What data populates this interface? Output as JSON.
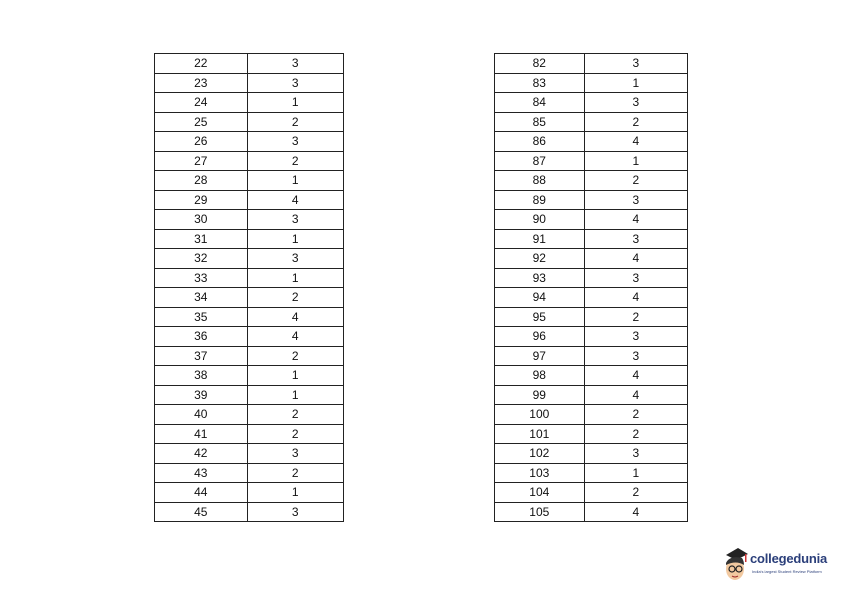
{
  "tables": [
    {
      "rows": [
        [
          "22",
          "3"
        ],
        [
          "23",
          "3"
        ],
        [
          "24",
          "1"
        ],
        [
          "25",
          "2"
        ],
        [
          "26",
          "3"
        ],
        [
          "27",
          "2"
        ],
        [
          "28",
          "1"
        ],
        [
          "29",
          "4"
        ],
        [
          "30",
          "3"
        ],
        [
          "31",
          "1"
        ],
        [
          "32",
          "3"
        ],
        [
          "33",
          "1"
        ],
        [
          "34",
          "2"
        ],
        [
          "35",
          "4"
        ],
        [
          "36",
          "4"
        ],
        [
          "37",
          "2"
        ],
        [
          "38",
          "1"
        ],
        [
          "39",
          "1"
        ],
        [
          "40",
          "2"
        ],
        [
          "41",
          "2"
        ],
        [
          "42",
          "3"
        ],
        [
          "43",
          "2"
        ],
        [
          "44",
          "1"
        ],
        [
          "45",
          "3"
        ]
      ]
    },
    {
      "rows": [
        [
          "82",
          "3"
        ],
        [
          "83",
          "1"
        ],
        [
          "84",
          "3"
        ],
        [
          "85",
          "2"
        ],
        [
          "86",
          "4"
        ],
        [
          "87",
          "1"
        ],
        [
          "88",
          "2"
        ],
        [
          "89",
          "3"
        ],
        [
          "90",
          "4"
        ],
        [
          "91",
          "3"
        ],
        [
          "92",
          "4"
        ],
        [
          "93",
          "3"
        ],
        [
          "94",
          "4"
        ],
        [
          "95",
          "2"
        ],
        [
          "96",
          "3"
        ],
        [
          "97",
          "3"
        ],
        [
          "98",
          "4"
        ],
        [
          "99",
          "4"
        ],
        [
          "100",
          "2"
        ],
        [
          "101",
          "2"
        ],
        [
          "102",
          "3"
        ],
        [
          "103",
          "1"
        ],
        [
          "104",
          "2"
        ],
        [
          "105",
          "4"
        ]
      ]
    }
  ],
  "logo": {
    "name": "collegedunia",
    "tagline": "India's largest Student Review Platform",
    "color": "#2b3f7a"
  }
}
